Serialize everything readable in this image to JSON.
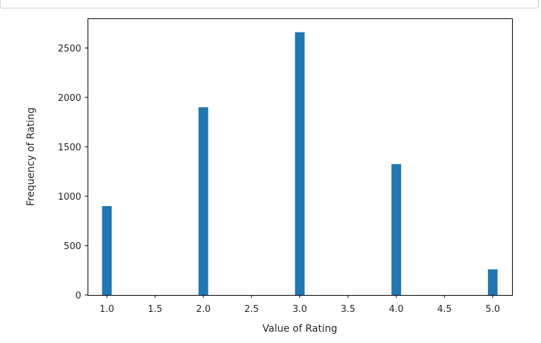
{
  "chart_data": {
    "type": "bar",
    "title": "",
    "xlabel": "Value of Rating",
    "ylabel": "Frequency of Rating",
    "xlim": [
      0.8,
      5.2
    ],
    "ylim": [
      0,
      2800
    ],
    "xticks": [
      "1.0",
      "1.5",
      "2.0",
      "2.5",
      "3.0",
      "3.5",
      "4.0",
      "4.5",
      "5.0"
    ],
    "yticks": [
      "0",
      "500",
      "1000",
      "1500",
      "2000",
      "2500"
    ],
    "bars": [
      {
        "x": 1.0,
        "value": 900
      },
      {
        "x": 2.0,
        "value": 1900
      },
      {
        "x": 3.0,
        "value": 2660
      },
      {
        "x": 4.0,
        "value": 1325
      },
      {
        "x": 5.0,
        "value": 260
      }
    ],
    "bar_width": 0.1,
    "bar_color": "#1f77b4",
    "grid": false
  }
}
